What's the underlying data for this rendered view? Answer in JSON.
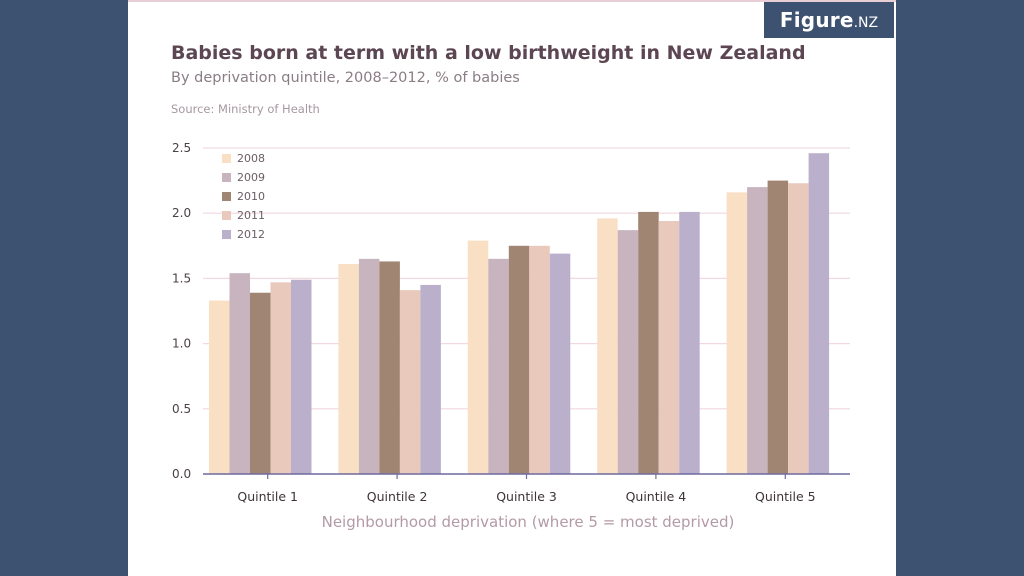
{
  "brand": {
    "name": "Figure",
    "suffix": ".NZ"
  },
  "header": {
    "title": "Babies born at term with a low birthweight in New Zealand",
    "subtitle": "By deprivation quintile, 2008–2012, % of babies",
    "source": "Source: Ministry of Health"
  },
  "colors": {
    "page_background": "#3d5170",
    "card_background": "#ffffff",
    "gridline": "#f1d9df",
    "axis": "#6f6a9e"
  },
  "chart_data": {
    "type": "bar",
    "categories": [
      "Quintile 1",
      "Quintile 2",
      "Quintile 3",
      "Quintile 4",
      "Quintile 5"
    ],
    "series": [
      {
        "name": "2008",
        "color": "#f9dfc4",
        "values": [
          1.33,
          1.61,
          1.79,
          1.96,
          2.16
        ]
      },
      {
        "name": "2009",
        "color": "#c7b4bf",
        "values": [
          1.54,
          1.65,
          1.65,
          1.87,
          2.2
        ]
      },
      {
        "name": "2010",
        "color": "#a08672",
        "values": [
          1.39,
          1.63,
          1.75,
          2.01,
          2.25
        ]
      },
      {
        "name": "2011",
        "color": "#eac9bd",
        "values": [
          1.47,
          1.41,
          1.75,
          1.94,
          2.23
        ]
      },
      {
        "name": "2012",
        "color": "#bbb0cc",
        "values": [
          1.49,
          1.45,
          1.69,
          2.01,
          2.46
        ]
      }
    ],
    "yticks": [
      "0.0",
      "0.5",
      "1.0",
      "1.5",
      "2.0",
      "2.5"
    ],
    "ylim": [
      0,
      2.5
    ],
    "xlabel": "Neighbourhood deprivation (where 5 = most deprived)",
    "ylabel": "",
    "grid": true,
    "legend_position": "top-left"
  }
}
